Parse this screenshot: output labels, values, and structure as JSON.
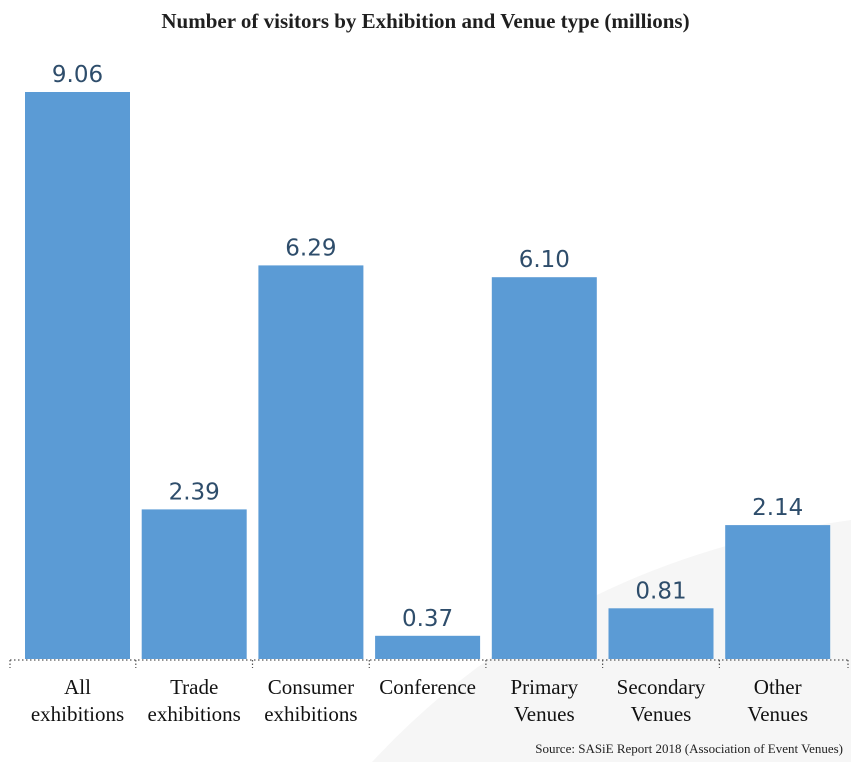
{
  "chart_data": {
    "type": "bar",
    "title": "Number of visitors by Exhibition and Venue type (millions)",
    "categories": [
      [
        "All",
        "exhibitions"
      ],
      [
        "Trade",
        "exhibitions"
      ],
      [
        "Consumer",
        "exhibitions"
      ],
      [
        "Conference"
      ],
      [
        "Primary",
        "Venues"
      ],
      [
        "Secondary",
        "Venues"
      ],
      [
        "Other",
        "Venues"
      ]
    ],
    "values": [
      9.06,
      2.39,
      6.29,
      0.37,
      6.1,
      0.81,
      2.14
    ],
    "value_labels": [
      "9.06",
      "2.39",
      "6.29",
      "0.37",
      "6.10",
      "0.81",
      "2.14"
    ],
    "ylim": [
      0,
      9.06
    ],
    "grid": false,
    "bar_color": "#5b9bd5",
    "label_color": "#2e4d6b",
    "source": "Source: SASiE Report 2018 (Association of Event Venues)"
  }
}
